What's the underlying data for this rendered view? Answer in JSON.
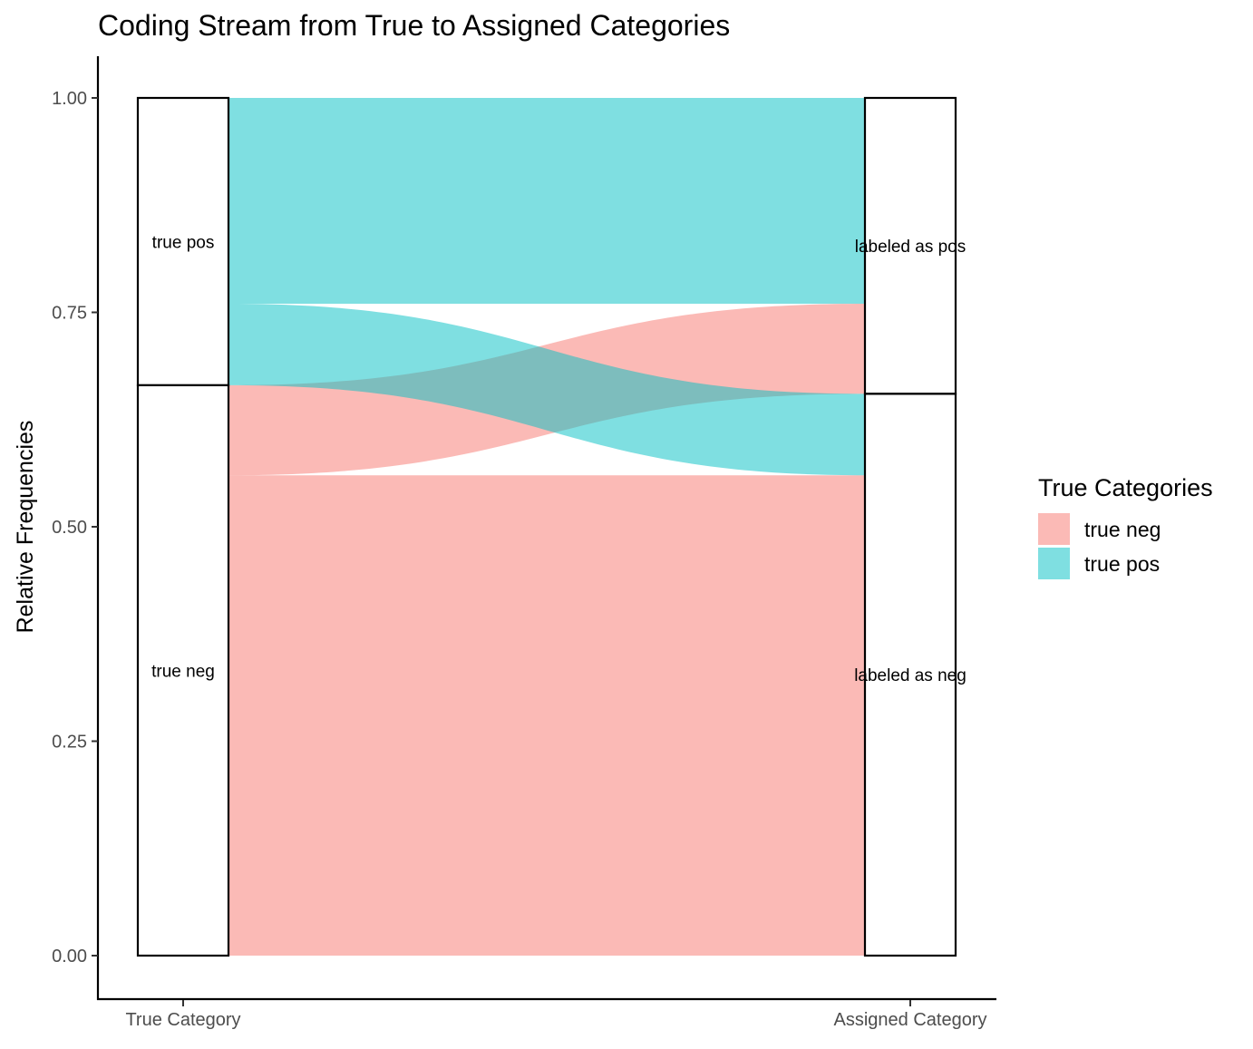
{
  "chart_data": {
    "type": "alluvial",
    "title": "Coding Stream from True to Assigned Categories",
    "ylabel": "Relative Frequencies",
    "xlabel": "",
    "ylim": [
      -0.05,
      1.05
    ],
    "yticks": [
      {
        "value": 0.0,
        "label": "0.00"
      },
      {
        "value": 0.25,
        "label": "0.25"
      },
      {
        "value": 0.5,
        "label": "0.50"
      },
      {
        "value": 0.75,
        "label": "0.75"
      },
      {
        "value": 1.0,
        "label": "1.00"
      }
    ],
    "axes": [
      "True Category",
      "Assigned Category"
    ],
    "strata": [
      {
        "axis": 0,
        "label": "true pos",
        "from": 0.665,
        "to": 1.0
      },
      {
        "axis": 0,
        "label": "true neg",
        "from": 0.0,
        "to": 0.665
      },
      {
        "axis": 1,
        "label": "labeled as pos",
        "from": 0.655,
        "to": 1.0
      },
      {
        "axis": 1,
        "label": "labeled as neg",
        "from": 0.0,
        "to": 0.655
      }
    ],
    "flows": [
      {
        "category": "true neg",
        "to": "labeled as neg",
        "value": 0.56,
        "left": [
          0.0,
          0.56
        ],
        "right": [
          0.0,
          0.56
        ]
      },
      {
        "category": "true neg",
        "to": "labeled as pos",
        "value": 0.105,
        "left": [
          0.56,
          0.665
        ],
        "right": [
          0.655,
          0.76
        ]
      },
      {
        "category": "true pos",
        "to": "labeled as neg",
        "value": 0.095,
        "left": [
          0.665,
          0.76
        ],
        "right": [
          0.56,
          0.655
        ]
      },
      {
        "category": "true pos",
        "to": "labeled as pos",
        "value": 0.24,
        "left": [
          0.76,
          1.0
        ],
        "right": [
          0.76,
          1.0
        ]
      }
    ],
    "legend": {
      "title": "True Categories",
      "placement": "right",
      "items": [
        {
          "label": "true neg",
          "color": "#F8766D"
        },
        {
          "label": "true pos",
          "color": "#00BFC4"
        }
      ]
    },
    "flow_opacity": 0.5,
    "grid": false
  }
}
